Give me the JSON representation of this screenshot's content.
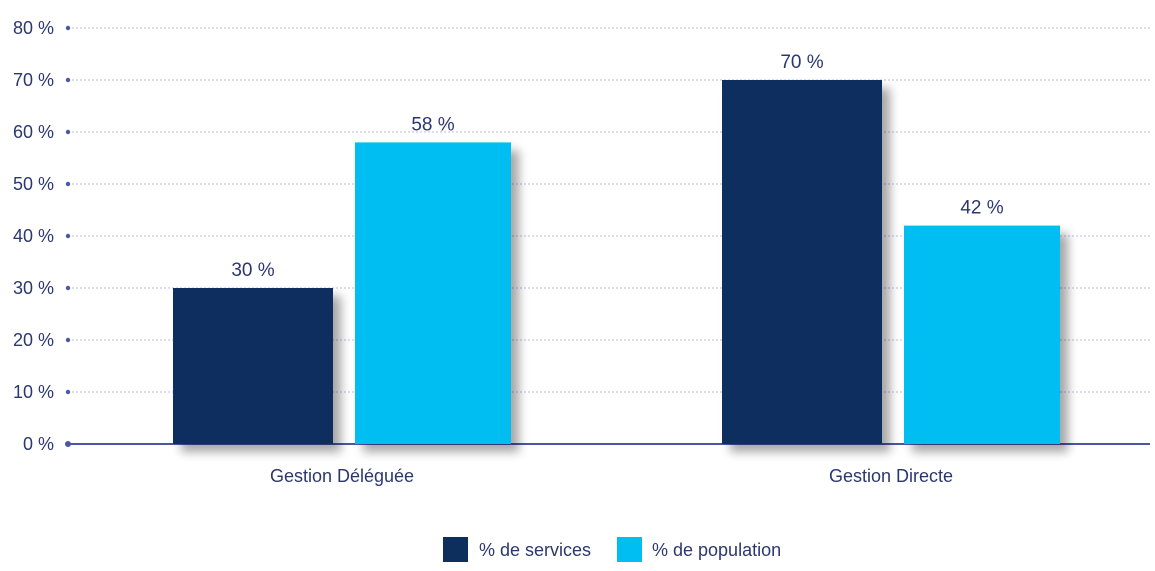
{
  "chart_data": {
    "type": "bar",
    "categories": [
      "Gestion Déléguée",
      "Gestion Directe"
    ],
    "series": [
      {
        "name": "% de services",
        "values": [
          30,
          70
        ],
        "color": "#0d2f5e"
      },
      {
        "name": "% de population",
        "values": [
          58,
          42
        ],
        "color": "#00bdf2"
      }
    ],
    "data_labels": [
      [
        "30 %",
        "70 %"
      ],
      [
        "58 %",
        "42 %"
      ]
    ],
    "ylim": [
      0,
      80
    ],
    "yticks": [
      0,
      10,
      20,
      30,
      40,
      50,
      60,
      70,
      80
    ],
    "ytick_labels": [
      "0 %",
      "10 %",
      "20 %",
      "30 %",
      "40 %",
      "50 %",
      "60 %",
      "70 %",
      "80 %"
    ],
    "grid": true,
    "legend_position": "bottom",
    "title": "",
    "xlabel": "",
    "ylabel": ""
  }
}
